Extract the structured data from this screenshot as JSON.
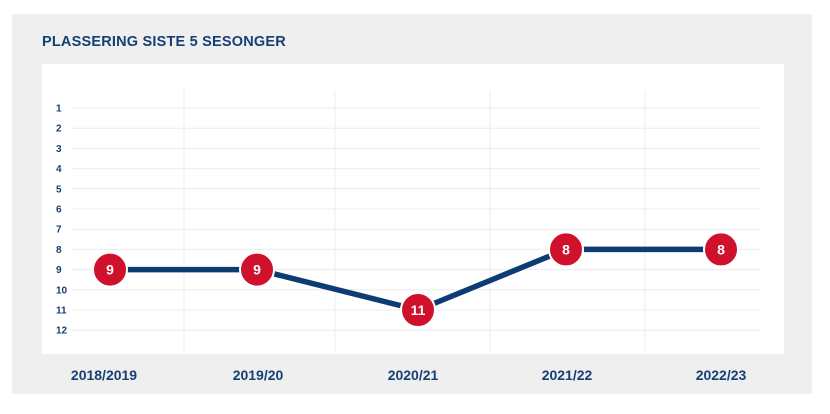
{
  "chart_data": {
    "type": "line",
    "title": "PLASSERING SISTE 5 SESONGER",
    "categories": [
      "2018/2019",
      "2019/20",
      "2020/21",
      "2021/22",
      "2022/23"
    ],
    "values": [
      9,
      9,
      11,
      8,
      8
    ],
    "y_ticks": [
      1,
      2,
      3,
      4,
      5,
      6,
      7,
      8,
      9,
      10,
      11,
      12
    ],
    "ylim": [
      1,
      12
    ],
    "y_inverted": true,
    "grid": true,
    "colors": {
      "line": "#0d3c75",
      "marker": "#d0112b",
      "text": "#163f74",
      "panel_background": "#efefef",
      "plot_background": "#ffffff",
      "grid": "#ececec"
    }
  }
}
